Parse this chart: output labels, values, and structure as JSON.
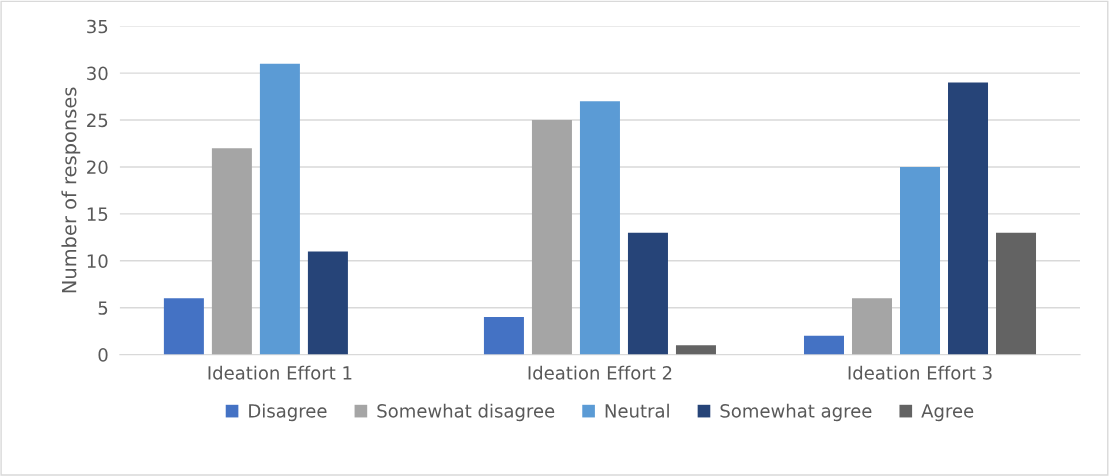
{
  "chart_data": {
    "type": "bar",
    "ylabel": "Number of responses",
    "categories": [
      "Ideation Effort 1",
      "Ideation Effort 2",
      "Ideation Effort 3"
    ],
    "series": [
      {
        "name": "Disagree",
        "color": "#4472c4",
        "values": [
          6,
          4,
          2
        ]
      },
      {
        "name": "Somewhat disagree",
        "color": "#a5a5a5",
        "values": [
          22,
          25,
          6
        ]
      },
      {
        "name": "Neutral",
        "color": "#5b9bd5",
        "values": [
          31,
          27,
          20
        ]
      },
      {
        "name": "Somewhat agree",
        "color": "#264478",
        "values": [
          11,
          13,
          29
        ]
      },
      {
        "name": "Agree",
        "color": "#636363",
        "values": [
          0,
          1,
          13
        ]
      }
    ],
    "ylim": [
      0,
      35
    ],
    "yticks": [
      0,
      5,
      10,
      15,
      20,
      25,
      30,
      35
    ],
    "grid": "y",
    "legend": "bottom"
  }
}
